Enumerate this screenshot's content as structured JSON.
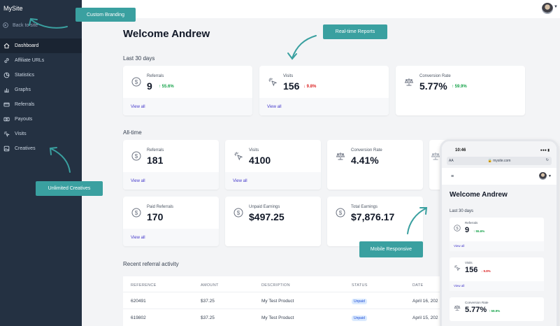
{
  "sidebar": {
    "brand": "MySite",
    "back_label": "Back to site",
    "items": [
      {
        "label": "Dashboard",
        "icon": "home-icon",
        "active": true
      },
      {
        "label": "Affiliate URLs",
        "icon": "link-icon"
      },
      {
        "label": "Statistics",
        "icon": "pie-chart-icon"
      },
      {
        "label": "Graphs",
        "icon": "bar-chart-icon"
      },
      {
        "label": "Referrals",
        "icon": "credit-card-icon"
      },
      {
        "label": "Payouts",
        "icon": "cash-icon"
      },
      {
        "label": "Visits",
        "icon": "cursor-click-icon"
      },
      {
        "label": "Creatives",
        "icon": "image-icon"
      }
    ]
  },
  "main": {
    "title": "Welcome Andrew",
    "last30": {
      "title": "Last 30 days",
      "cards": [
        {
          "label": "Referrals",
          "value": "9",
          "delta": "55.6%",
          "trend": "up",
          "view": "View all",
          "icon": "dollar-circle-icon"
        },
        {
          "label": "Visits",
          "value": "156",
          "delta": "9.8%",
          "trend": "down",
          "view": "View all",
          "icon": "cursor-click-icon"
        },
        {
          "label": "Conversion Rate",
          "value": "5.77%",
          "delta": "59.9%",
          "trend": "up",
          "icon": "scale-icon"
        }
      ]
    },
    "alltime": {
      "title": "All-time",
      "cards": [
        {
          "label": "Referrals",
          "value": "181",
          "view": "View all",
          "icon": "dollar-circle-icon"
        },
        {
          "label": "Visits",
          "value": "4100",
          "view": "View all",
          "icon": "cursor-click-icon"
        },
        {
          "label": "Conversion Rate",
          "value": "4.41%",
          "icon": "scale-icon"
        },
        {
          "label": "Paid Referrals",
          "value": "170",
          "view": "View all",
          "icon": "dollar-circle-icon"
        },
        {
          "label": "Unpaid Earnings",
          "value": "$497.25",
          "icon": "dollar-circle-icon"
        },
        {
          "label": "Total Earnings",
          "value": "$7,876.17",
          "icon": "dollar-circle-icon"
        }
      ]
    },
    "recent": {
      "title": "Recent referral activity",
      "headers": [
        "REFERENCE",
        "AMOUNT",
        "DESCRIPTION",
        "STATUS",
        "DATE"
      ],
      "rows": [
        [
          "620491",
          "$37.25",
          "My Test Product",
          "Unpaid",
          "April 16, 202"
        ],
        [
          "619802",
          "$37.25",
          "My Test Product",
          "Unpaid",
          "April 15, 202"
        ]
      ]
    }
  },
  "callouts": {
    "branding": "Custom Branding",
    "reports": "Real-time Reports",
    "creatives": "Unlimited Creatives",
    "mobile": "Mobile Responsive"
  },
  "phone": {
    "time": "10:46",
    "aa": "AA",
    "url": "mysite.com",
    "title": "Welcome Andrew",
    "section": "Last 30 days",
    "cards": [
      {
        "label": "Referrals",
        "value": "9",
        "delta": "55.6%",
        "trend": "up",
        "view": "View all"
      },
      {
        "label": "Visits",
        "value": "156",
        "delta": "9.8%",
        "trend": "down",
        "view": "View all"
      },
      {
        "label": "Conversion Rate",
        "value": "5.77%",
        "delta": "59.9%",
        "trend": "up"
      }
    ]
  },
  "colors": {
    "sidebar": "#243142",
    "accent": "#3aa0a0",
    "link": "#4338ca",
    "up": "#16a34a",
    "down": "#dc2626"
  }
}
